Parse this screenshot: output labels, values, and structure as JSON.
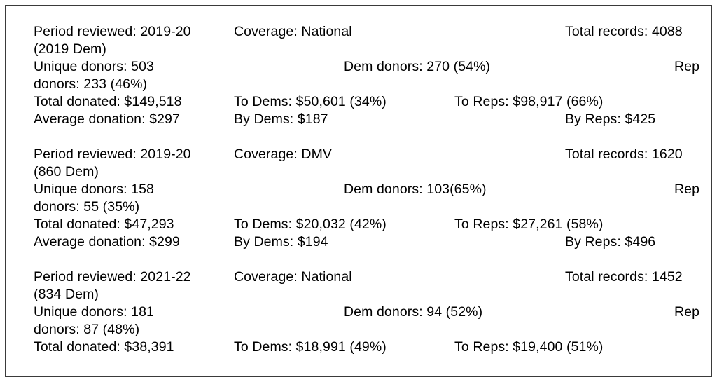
{
  "blocks": [
    {
      "period": "Period reviewed: 2019-20",
      "coverage": "Coverage: National",
      "total_records": "Total records: 4088",
      "period_cont": "(2019 Dem)",
      "unique_donors": "Unique donors: 503",
      "dem_donors": "Dem donors: 270 (54%)",
      "rep_label": "Rep",
      "rep_donors_cont": "donors: 233 (46%)",
      "total_donated": "Total donated: $149,518",
      "to_dems": "To Dems: $50,601 (34%)",
      "to_reps": "To Reps: $98,917 (66%)",
      "average_donation": "Average donation: $297",
      "by_dems": "By Dems: $187",
      "by_reps": "By Reps: $425"
    },
    {
      "period": "Period reviewed: 2019-20",
      "coverage": "Coverage: DMV",
      "total_records": "Total records: 1620",
      "period_cont": "(860 Dem)",
      "unique_donors": "Unique donors: 158",
      "dem_donors": "Dem donors: 103(65%)",
      "rep_label": "Rep",
      "rep_donors_cont": "donors: 55 (35%)",
      "total_donated": "Total donated: $47,293",
      "to_dems": "To Dems: $20,032 (42%)",
      "to_reps": "To Reps: $27,261 (58%)",
      "average_donation": "Average donation: $299",
      "by_dems": "By Dems: $194",
      "by_reps": "By Reps: $496"
    },
    {
      "period": "Period reviewed: 2021-22",
      "coverage": "Coverage: National",
      "total_records": "Total records: 1452",
      "period_cont": "(834 Dem)",
      "unique_donors": "Unique donors: 181",
      "dem_donors": "Dem donors: 94 (52%)",
      "rep_label": "Rep",
      "rep_donors_cont": "donors: 87 (48%)",
      "total_donated": "Total donated: $38,391",
      "to_dems": "To Dems: $18,991 (49%)",
      "to_reps": "To Reps: $19,400 (51%)"
    }
  ]
}
